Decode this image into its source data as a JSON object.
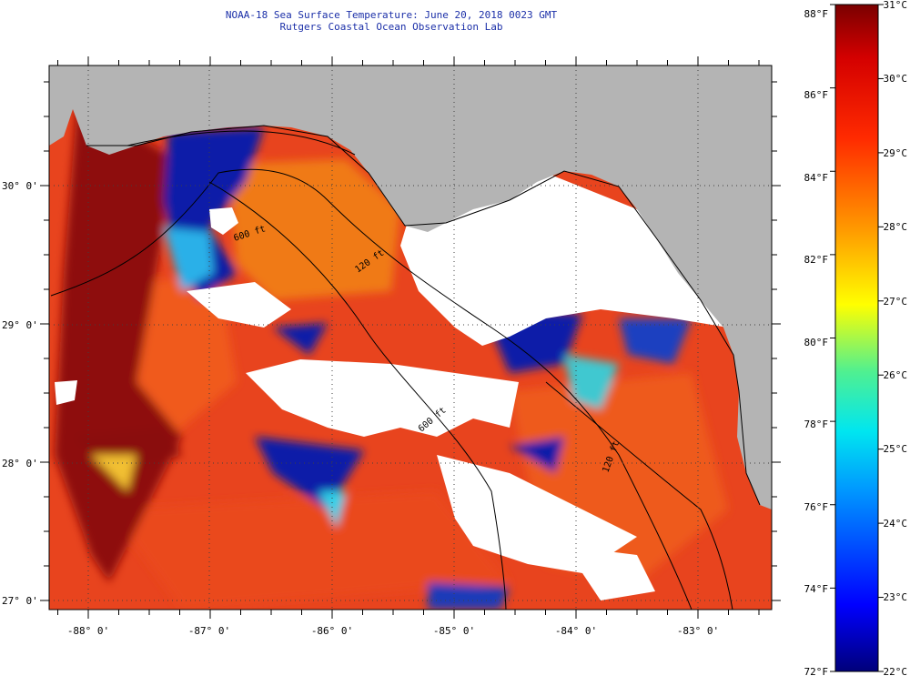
{
  "header": {
    "title": "NOAA-18 Sea Surface Temperature:  June 20, 2018 0023 GMT",
    "subtitle": "Rutgers Coastal Ocean Observation Lab"
  },
  "map": {
    "x_axis_labels": [
      {
        "lon": -88,
        "label": "-88° 0'"
      },
      {
        "lon": -87,
        "label": "-87° 0'"
      },
      {
        "lon": -86,
        "label": "-86° 0'"
      },
      {
        "lon": -85,
        "label": "-85° 0'"
      },
      {
        "lon": -84,
        "label": "-84° 0'"
      },
      {
        "lon": -83,
        "label": "-83° 0'"
      }
    ],
    "y_axis_labels": [
      {
        "lat": 30,
        "label": "30° 0'"
      },
      {
        "lat": 29,
        "label": "29° 0'"
      },
      {
        "lat": 28,
        "label": "28° 0'"
      },
      {
        "lat": 27,
        "label": "27° 0'"
      }
    ],
    "contour_labels": [
      "600 ft",
      "120 ft",
      "600 ft",
      "120 ft"
    ],
    "colors": {
      "land": "#b4b4b4",
      "cloud": "#ffffff",
      "warm": "#e8321e",
      "hot": "#8e0c0c",
      "cold": "#0a1fa8"
    }
  },
  "colorbar": {
    "fahrenheit_labels": [
      "88°F",
      "86°F",
      "84°F",
      "82°F",
      "80°F",
      "78°F",
      "76°F",
      "74°F",
      "72°F"
    ],
    "celsius_labels": [
      "31°C",
      "30°C",
      "29°C",
      "28°C",
      "27°C",
      "26°C",
      "25°C",
      "24°C",
      "23°C",
      "22°C"
    ]
  }
}
